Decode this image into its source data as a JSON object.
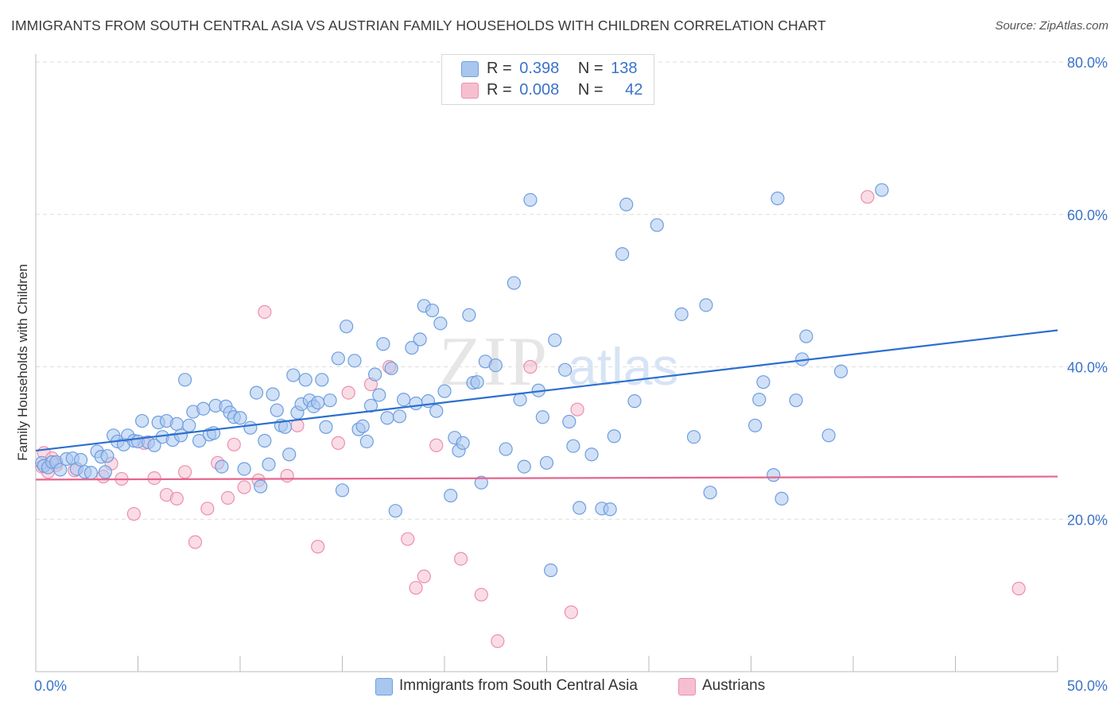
{
  "header": {
    "title": "IMMIGRANTS FROM SOUTH CENTRAL ASIA VS AUSTRIAN FAMILY HOUSEHOLDS WITH CHILDREN CORRELATION CHART",
    "source": "Source: ZipAtlas.com"
  },
  "watermark": {
    "zip": "ZIP",
    "atlas": "atlas"
  },
  "legend": {
    "blue": {
      "r_label": "R =",
      "r_value": "0.398",
      "n_label": "N =",
      "n_value": "138"
    },
    "pink": {
      "r_label": "R =",
      "r_value": "0.008",
      "n_label": "N =",
      "n_value": "42"
    }
  },
  "colors": {
    "blue_fill": "#a9c6ef",
    "blue_stroke": "#6d9ee0",
    "blue_line": "#2c6fcf",
    "pink_fill": "#f6bfd0",
    "pink_stroke": "#ec8fae",
    "pink_line": "#e3668e",
    "axis_label": "#3b73c8",
    "grid": "#dddddd"
  },
  "chart_data": {
    "type": "scatter",
    "title": "IMMIGRANTS FROM SOUTH CENTRAL ASIA VS AUSTRIAN FAMILY HOUSEHOLDS WITH CHILDREN CORRELATION CHART",
    "xlabel": "",
    "ylabel": "Family Households with Children",
    "xlim": [
      0,
      50
    ],
    "ylim": [
      0,
      80
    ],
    "x_tick_labels": [
      "0.0%",
      "50.0%"
    ],
    "y_ticks": [
      20,
      40,
      60,
      80
    ],
    "y_tick_labels": [
      "20.0%",
      "40.0%",
      "60.0%",
      "80.0%"
    ],
    "grid": true,
    "legend_position": "top-center",
    "series": [
      {
        "name": "Immigrants from South Central Asia",
        "color": "#a9c6ef",
        "trend": [
          [
            0,
            29.0
          ],
          [
            50,
            44.8
          ]
        ],
        "points": [
          [
            0.3,
            27.4
          ],
          [
            0.4,
            27.0
          ],
          [
            0.6,
            26.8
          ],
          [
            0.8,
            27.5
          ],
          [
            1.0,
            27.5
          ],
          [
            1.2,
            26.5
          ],
          [
            1.5,
            27.9
          ],
          [
            1.8,
            28.0
          ],
          [
            2.0,
            26.6
          ],
          [
            2.2,
            27.8
          ],
          [
            2.4,
            26.2
          ],
          [
            2.7,
            26.1
          ],
          [
            3.0,
            28.9
          ],
          [
            3.2,
            28.2
          ],
          [
            3.4,
            26.2
          ],
          [
            3.5,
            28.3
          ],
          [
            3.8,
            31.0
          ],
          [
            4.0,
            30.2
          ],
          [
            4.3,
            29.8
          ],
          [
            4.5,
            31.0
          ],
          [
            4.8,
            30.3
          ],
          [
            5.0,
            30.2
          ],
          [
            5.2,
            32.9
          ],
          [
            5.5,
            30.1
          ],
          [
            5.8,
            29.7
          ],
          [
            6.0,
            32.7
          ],
          [
            6.2,
            30.8
          ],
          [
            6.4,
            32.9
          ],
          [
            6.7,
            30.4
          ],
          [
            6.9,
            32.5
          ],
          [
            7.1,
            31.0
          ],
          [
            7.3,
            38.3
          ],
          [
            7.5,
            32.3
          ],
          [
            7.7,
            34.1
          ],
          [
            8.0,
            30.3
          ],
          [
            8.2,
            34.5
          ],
          [
            8.5,
            31.1
          ],
          [
            8.7,
            31.3
          ],
          [
            8.8,
            34.9
          ],
          [
            9.1,
            26.9
          ],
          [
            9.3,
            34.8
          ],
          [
            9.5,
            34.0
          ],
          [
            9.7,
            33.4
          ],
          [
            10.0,
            33.3
          ],
          [
            10.2,
            26.6
          ],
          [
            10.5,
            32.0
          ],
          [
            10.8,
            36.6
          ],
          [
            11.0,
            24.3
          ],
          [
            11.2,
            30.3
          ],
          [
            11.4,
            27.2
          ],
          [
            11.6,
            36.4
          ],
          [
            11.8,
            34.3
          ],
          [
            12.0,
            32.3
          ],
          [
            12.2,
            32.1
          ],
          [
            12.4,
            28.5
          ],
          [
            12.6,
            38.9
          ],
          [
            12.8,
            34.0
          ],
          [
            13.0,
            35.1
          ],
          [
            13.2,
            38.3
          ],
          [
            13.4,
            35.6
          ],
          [
            13.6,
            34.8
          ],
          [
            13.8,
            35.3
          ],
          [
            14.0,
            38.3
          ],
          [
            14.2,
            32.1
          ],
          [
            14.4,
            35.6
          ],
          [
            14.8,
            41.1
          ],
          [
            15.0,
            23.8
          ],
          [
            15.2,
            45.3
          ],
          [
            15.6,
            40.8
          ],
          [
            15.8,
            31.8
          ],
          [
            16.0,
            32.2
          ],
          [
            16.2,
            30.2
          ],
          [
            16.4,
            34.9
          ],
          [
            16.6,
            39.0
          ],
          [
            16.8,
            36.3
          ],
          [
            17.0,
            43.0
          ],
          [
            17.2,
            33.3
          ],
          [
            17.4,
            39.8
          ],
          [
            17.6,
            21.1
          ],
          [
            17.8,
            33.5
          ],
          [
            18.0,
            35.7
          ],
          [
            18.4,
            42.5
          ],
          [
            18.6,
            35.2
          ],
          [
            18.8,
            43.6
          ],
          [
            19.0,
            48.0
          ],
          [
            19.2,
            35.5
          ],
          [
            19.4,
            47.4
          ],
          [
            19.6,
            34.2
          ],
          [
            19.8,
            45.7
          ],
          [
            20.0,
            36.8
          ],
          [
            20.3,
            23.1
          ],
          [
            20.5,
            30.7
          ],
          [
            20.7,
            29.0
          ],
          [
            20.9,
            30.0
          ],
          [
            21.2,
            46.8
          ],
          [
            21.4,
            37.9
          ],
          [
            21.6,
            38.0
          ],
          [
            21.8,
            24.8
          ],
          [
            22.0,
            40.7
          ],
          [
            22.5,
            40.2
          ],
          [
            23.0,
            29.2
          ],
          [
            23.4,
            51.0
          ],
          [
            23.7,
            35.7
          ],
          [
            23.9,
            26.9
          ],
          [
            24.2,
            61.9
          ],
          [
            24.6,
            36.9
          ],
          [
            24.8,
            33.4
          ],
          [
            25.0,
            27.4
          ],
          [
            25.2,
            13.3
          ],
          [
            25.4,
            43.5
          ],
          [
            25.9,
            39.6
          ],
          [
            26.1,
            32.8
          ],
          [
            26.3,
            29.6
          ],
          [
            26.6,
            21.5
          ],
          [
            27.2,
            28.5
          ],
          [
            27.7,
            21.4
          ],
          [
            28.1,
            21.3
          ],
          [
            28.3,
            30.9
          ],
          [
            28.7,
            54.8
          ],
          [
            28.9,
            61.3
          ],
          [
            29.3,
            35.5
          ],
          [
            30.4,
            58.6
          ],
          [
            31.6,
            46.9
          ],
          [
            32.2,
            30.8
          ],
          [
            32.8,
            48.1
          ],
          [
            33.0,
            23.5
          ],
          [
            35.2,
            32.3
          ],
          [
            35.4,
            35.7
          ],
          [
            35.6,
            38.0
          ],
          [
            36.1,
            25.8
          ],
          [
            36.3,
            62.1
          ],
          [
            36.5,
            22.7
          ],
          [
            37.2,
            35.6
          ],
          [
            37.5,
            41.0
          ],
          [
            37.7,
            44.0
          ],
          [
            38.8,
            31.0
          ],
          [
            39.4,
            39.4
          ],
          [
            41.4,
            63.2
          ]
        ]
      },
      {
        "name": "Austrians",
        "color": "#f6bfd0",
        "trend": [
          [
            0,
            25.2
          ],
          [
            50,
            25.6
          ]
        ],
        "points": [
          [
            0.3,
            26.9
          ],
          [
            0.4,
            28.7
          ],
          [
            0.6,
            26.2
          ],
          [
            0.8,
            28.0
          ],
          [
            1.0,
            27.1
          ],
          [
            1.9,
            26.4
          ],
          [
            3.3,
            25.6
          ],
          [
            3.7,
            27.3
          ],
          [
            4.2,
            25.3
          ],
          [
            4.8,
            20.7
          ],
          [
            5.3,
            30.0
          ],
          [
            5.8,
            25.4
          ],
          [
            6.4,
            23.2
          ],
          [
            6.9,
            22.7
          ],
          [
            7.3,
            26.2
          ],
          [
            7.8,
            17.0
          ],
          [
            8.4,
            21.4
          ],
          [
            8.9,
            27.4
          ],
          [
            9.4,
            22.8
          ],
          [
            9.7,
            29.8
          ],
          [
            10.2,
            24.2
          ],
          [
            10.9,
            25.1
          ],
          [
            11.2,
            47.2
          ],
          [
            12.3,
            25.7
          ],
          [
            12.8,
            32.3
          ],
          [
            13.8,
            16.4
          ],
          [
            14.8,
            30.0
          ],
          [
            15.3,
            36.6
          ],
          [
            16.4,
            37.7
          ],
          [
            17.3,
            40.0
          ],
          [
            18.2,
            17.4
          ],
          [
            18.6,
            11.0
          ],
          [
            19.0,
            12.5
          ],
          [
            19.6,
            29.7
          ],
          [
            20.8,
            14.8
          ],
          [
            21.8,
            10.1
          ],
          [
            22.6,
            4.0
          ],
          [
            24.2,
            40.0
          ],
          [
            26.2,
            7.8
          ],
          [
            26.5,
            34.4
          ],
          [
            40.7,
            62.3
          ],
          [
            48.1,
            10.9
          ]
        ]
      }
    ]
  },
  "bottom_legend": {
    "blue_label": "Immigrants from South Central Asia",
    "pink_label": "Austrians"
  }
}
